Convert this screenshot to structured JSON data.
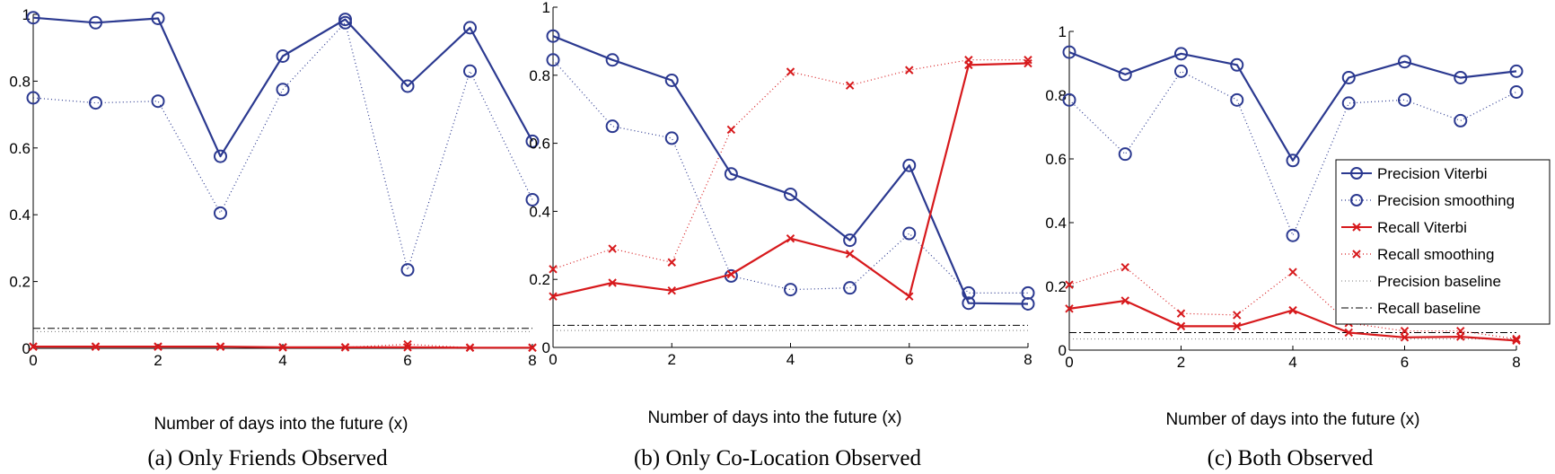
{
  "colors": {
    "precision": "#2b3990",
    "recall": "#d7191c",
    "baseline": "#000000"
  },
  "legend": {
    "placement": "right-middle of panel (c)",
    "entries": [
      {
        "label": "Precision Viterbi",
        "series": "precision_viterbi"
      },
      {
        "label": "Precision smoothing",
        "series": "precision_smoothing"
      },
      {
        "label": "Recall Viterbi",
        "series": "recall_viterbi"
      },
      {
        "label": "Recall smoothing",
        "series": "recall_smoothing"
      },
      {
        "label": "Precision baseline",
        "series": "precision_baseline"
      },
      {
        "label": "Recall baseline",
        "series": "recall_baseline"
      }
    ]
  },
  "chart_data": [
    {
      "type": "line",
      "caption": "(a) Only Friends Observed",
      "xlabel": "Number of days into the future (x)",
      "xlim": [
        0,
        8
      ],
      "ylim": [
        0,
        1
      ],
      "xticks": [
        "0",
        "2",
        "4",
        "6",
        "8"
      ],
      "yticks": [
        "0",
        "0.2",
        "0.4",
        "0.6",
        "0.8",
        "1"
      ],
      "x": [
        0,
        1,
        2,
        3,
        4,
        5,
        6,
        7,
        8
      ],
      "series": [
        {
          "name": "Precision Viterbi",
          "key": "precision_viterbi",
          "values": [
            0.99,
            0.975,
            0.988,
            0.575,
            0.875,
            0.985,
            0.785,
            0.96,
            0.62
          ]
        },
        {
          "name": "Precision smoothing",
          "key": "precision_smoothing",
          "values": [
            0.75,
            0.735,
            0.74,
            0.405,
            0.775,
            0.975,
            0.235,
            0.83,
            0.445
          ]
        },
        {
          "name": "Recall Viterbi",
          "key": "recall_viterbi",
          "values": [
            0.005,
            0.005,
            0.005,
            0.005,
            0.003,
            0.003,
            0.003,
            0.002,
            0.002
          ]
        },
        {
          "name": "Recall smoothing",
          "key": "recall_smoothing",
          "values": [
            0.005,
            0.005,
            0.005,
            0.005,
            0.003,
            0.003,
            0.012,
            0.002,
            0.002
          ]
        },
        {
          "name": "Precision baseline",
          "key": "precision_baseline",
          "values": [
            0.05,
            0.05,
            0.05,
            0.05,
            0.05,
            0.05,
            0.05,
            0.05,
            0.05
          ]
        },
        {
          "name": "Recall baseline",
          "key": "recall_baseline",
          "values": [
            0.06,
            0.06,
            0.06,
            0.06,
            0.06,
            0.06,
            0.06,
            0.06,
            0.06
          ]
        }
      ]
    },
    {
      "type": "line",
      "caption": "(b) Only Co-Location Observed",
      "xlabel": "Number of days into the future (x)",
      "xlim": [
        0,
        8
      ],
      "ylim": [
        0,
        1
      ],
      "xticks": [
        "0",
        "2",
        "4",
        "6",
        "8"
      ],
      "yticks": [
        "0",
        "0.2",
        "0.4",
        "0.6",
        "0.8",
        "1"
      ],
      "x": [
        0,
        1,
        2,
        3,
        4,
        5,
        6,
        7,
        8
      ],
      "series": [
        {
          "name": "Precision Viterbi",
          "key": "precision_viterbi",
          "values": [
            0.915,
            0.845,
            0.785,
            0.51,
            0.45,
            0.315,
            0.535,
            0.13,
            0.128
          ]
        },
        {
          "name": "Precision smoothing",
          "key": "precision_smoothing",
          "values": [
            0.845,
            0.65,
            0.615,
            0.21,
            0.17,
            0.175,
            0.335,
            0.16,
            0.16
          ]
        },
        {
          "name": "Recall Viterbi",
          "key": "recall_viterbi",
          "values": [
            0.15,
            0.19,
            0.167,
            0.215,
            0.32,
            0.275,
            0.15,
            0.83,
            0.835
          ]
        },
        {
          "name": "Recall smoothing",
          "key": "recall_smoothing",
          "values": [
            0.23,
            0.29,
            0.25,
            0.64,
            0.81,
            0.77,
            0.815,
            0.845,
            0.845
          ]
        },
        {
          "name": "Precision baseline",
          "key": "precision_baseline",
          "values": [
            0.05,
            0.05,
            0.05,
            0.05,
            0.05,
            0.05,
            0.05,
            0.05,
            0.05
          ]
        },
        {
          "name": "Recall baseline",
          "key": "recall_baseline",
          "values": [
            0.065,
            0.065,
            0.065,
            0.065,
            0.065,
            0.065,
            0.065,
            0.065,
            0.065
          ]
        }
      ]
    },
    {
      "type": "line",
      "caption": "(c) Both Observed",
      "xlabel": "Number of days into the future (x)",
      "xlim": [
        0,
        8
      ],
      "ylim": [
        0,
        1
      ],
      "xticks": [
        "0",
        "2",
        "4",
        "6",
        "8"
      ],
      "yticks": [
        "0",
        "0.2",
        "0.4",
        "0.6",
        "0.8",
        "1"
      ],
      "x": [
        0,
        1,
        2,
        3,
        4,
        5,
        6,
        7,
        8
      ],
      "series": [
        {
          "name": "Precision Viterbi",
          "key": "precision_viterbi",
          "values": [
            0.935,
            0.865,
            0.93,
            0.895,
            0.595,
            0.855,
            0.905,
            0.855,
            0.875
          ]
        },
        {
          "name": "Precision smoothing",
          "key": "precision_smoothing",
          "values": [
            0.785,
            0.615,
            0.875,
            0.785,
            0.36,
            0.775,
            0.785,
            0.72,
            0.81
          ]
        },
        {
          "name": "Recall Viterbi",
          "key": "recall_viterbi",
          "values": [
            0.13,
            0.155,
            0.075,
            0.075,
            0.125,
            0.055,
            0.04,
            0.042,
            0.03
          ]
        },
        {
          "name": "Recall smoothing",
          "key": "recall_smoothing",
          "values": [
            0.205,
            0.26,
            0.115,
            0.11,
            0.245,
            0.085,
            0.06,
            0.06,
            0.035
          ]
        },
        {
          "name": "Precision baseline",
          "key": "precision_baseline",
          "values": [
            0.035,
            0.035,
            0.035,
            0.035,
            0.035,
            0.035,
            0.035,
            0.035,
            0.035
          ]
        },
        {
          "name": "Recall baseline",
          "key": "recall_baseline",
          "values": [
            0.055,
            0.055,
            0.055,
            0.055,
            0.055,
            0.055,
            0.055,
            0.055,
            0.055
          ]
        }
      ]
    }
  ]
}
